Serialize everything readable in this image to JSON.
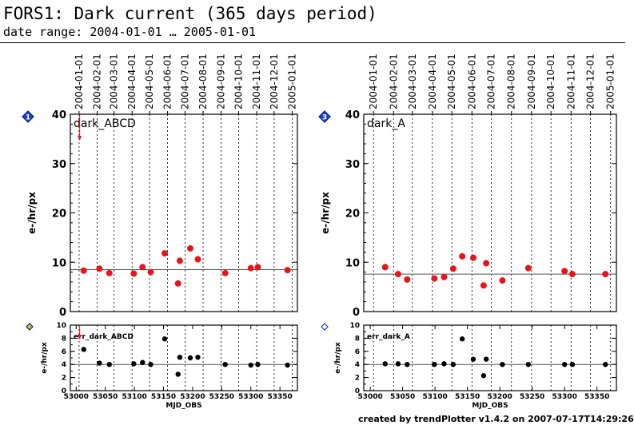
{
  "header": {
    "title": "FORS1: Dark current (365 days period)",
    "subtitle": "date range: 2004-01-01 … 2005-01-01"
  },
  "footer": "created by trendPlotter v1.4.2 on 2007-07-17T14:29:26",
  "colors": {
    "main_points": "#e8141c",
    "error_points": "#000000",
    "marker_blue": "#1e3fcf",
    "marker_yellow": "#e8c800",
    "reference_line": "#555555"
  },
  "chart_data": [
    {
      "type": "scatter",
      "panel_marker": "1",
      "panel_marker_icon": "blue-diamond-icon",
      "label": "dark_ABCD",
      "ylabel": "e-/hr/px",
      "xlim": [
        52990,
        53380
      ],
      "ylim": [
        0,
        40
      ],
      "yticks": [
        0,
        10,
        20,
        30,
        40
      ],
      "reference_y": 8.5,
      "date_ticks": [
        "2004-01-01",
        "2004-02-01",
        "2004-03-01",
        "2004-04-01",
        "2004-05-01",
        "2004-06-01",
        "2004-07-01",
        "2004-08-01",
        "2004-09-01",
        "2004-10-01",
        "2004-11-01",
        "2004-12-01",
        "2005-01-01"
      ],
      "date_tick_mjd": [
        53005,
        53036,
        53065,
        53096,
        53126,
        53157,
        53187,
        53218,
        53249,
        53279,
        53310,
        53340,
        53371
      ],
      "outlier_arrow_x": 53006,
      "x": [
        53013,
        53040,
        53057,
        53099,
        53114,
        53128,
        53152,
        53175,
        53178,
        53196,
        53209,
        53256,
        53300,
        53312,
        53363
      ],
      "y": [
        8.3,
        8.7,
        7.8,
        7.7,
        9.0,
        8.0,
        11.8,
        5.7,
        10.3,
        12.8,
        10.6,
        7.8,
        8.8,
        9.0,
        8.4
      ],
      "grid": "vertical dotted at date ticks"
    },
    {
      "type": "scatter",
      "panel_marker": "3",
      "panel_marker_icon": "blue-diamond-icon",
      "label": "dark_A",
      "ylabel": "e-/hr/px",
      "xlim": [
        52990,
        53380
      ],
      "ylim": [
        0,
        40
      ],
      "yticks": [
        0,
        10,
        20,
        30,
        40
      ],
      "reference_y": 7.6,
      "date_ticks": [
        "2004-01-01",
        "2004-02-01",
        "2004-03-01",
        "2004-04-01",
        "2004-05-01",
        "2004-06-01",
        "2004-07-01",
        "2004-08-01",
        "2004-09-01",
        "2004-10-01",
        "2004-11-01",
        "2004-12-01",
        "2005-01-01"
      ],
      "date_tick_mjd": [
        53005,
        53036,
        53065,
        53096,
        53126,
        53157,
        53187,
        53218,
        53249,
        53279,
        53310,
        53340,
        53371
      ],
      "x": [
        53023,
        53043,
        53057,
        53099,
        53114,
        53128,
        53142,
        53159,
        53175,
        53179,
        53204,
        53244,
        53300,
        53312,
        53363
      ],
      "y": [
        9.0,
        7.6,
        6.5,
        6.7,
        7.0,
        8.7,
        11.2,
        10.9,
        5.3,
        9.8,
        6.3,
        8.8,
        8.2,
        7.6,
        7.6
      ],
      "grid": "vertical dotted at date ticks"
    },
    {
      "type": "scatter",
      "panel_marker_icon": "yellow-diamond-icon",
      "label": "err_dark_ABCD",
      "ylabel": "e-/hr/px",
      "xlabel": "MJD_OBS",
      "xlim": [
        52990,
        53380
      ],
      "xticks": [
        53000,
        53050,
        53100,
        53150,
        53200,
        53250,
        53300,
        53350
      ],
      "ylim": [
        0,
        10
      ],
      "yticks": [
        0,
        2,
        4,
        6,
        8,
        10
      ],
      "reference_y": 4.0,
      "outlier_arrow_x": 53006,
      "x": [
        53013,
        53040,
        53057,
        53099,
        53114,
        53128,
        53152,
        53175,
        53178,
        53196,
        53209,
        53256,
        53300,
        53312,
        53363
      ],
      "y": [
        6.3,
        4.2,
        4.0,
        4.1,
        4.3,
        4.0,
        7.9,
        2.5,
        5.1,
        5.0,
        5.1,
        4.0,
        3.9,
        4.0,
        3.9
      ],
      "grid": "vertical dotted at date ticks"
    },
    {
      "type": "scatter",
      "panel_marker_icon": "blue-diamond-outline-icon",
      "label": "err_dark_A",
      "ylabel": "e-/hr/px",
      "xlabel": "MJD_OBS",
      "xlim": [
        52990,
        53380
      ],
      "xticks": [
        53000,
        53050,
        53100,
        53150,
        53200,
        53250,
        53300,
        53350
      ],
      "ylim": [
        0,
        10
      ],
      "yticks": [
        0,
        2,
        4,
        6,
        8,
        10
      ],
      "reference_y": 4.0,
      "x": [
        53023,
        53043,
        53057,
        53099,
        53114,
        53128,
        53142,
        53159,
        53175,
        53179,
        53204,
        53244,
        53300,
        53312,
        53363
      ],
      "y": [
        4.1,
        4.1,
        4.0,
        4.0,
        4.1,
        4.0,
        7.9,
        4.8,
        2.3,
        4.8,
        4.0,
        4.0,
        4.0,
        4.0,
        4.0
      ],
      "grid": "vertical dotted at date ticks"
    }
  ]
}
